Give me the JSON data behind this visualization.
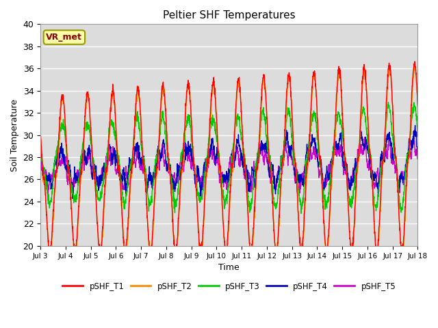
{
  "title": "Peltier SHF Temperatures",
  "xlabel": "Time",
  "ylabel": "Soil Temperature",
  "ylim": [
    20,
    40
  ],
  "xlim_days": [
    3,
    18
  ],
  "annotation_text": "VR_met",
  "colors": {
    "pSHF_T1": "#ff0000",
    "pSHF_T2": "#ff8800",
    "pSHF_T3": "#00cc00",
    "pSHF_T4": "#0000bb",
    "pSHF_T5": "#cc00cc"
  },
  "bg_color": "#dcdcdc",
  "fig_bg": "#ffffff",
  "xtick_labels": [
    "Jul 3",
    "Jul 4",
    "Jul 5",
    "Jul 6",
    "Jul 7",
    "Jul 8",
    "Jul 9",
    "Jul 10",
    "Jul 11",
    "Jul 12",
    "Jul 13",
    "Jul 14",
    "Jul 15",
    "Jul 16",
    "Jul 17",
    "Jul 18"
  ],
  "xtick_positions": [
    3,
    4,
    5,
    6,
    7,
    8,
    9,
    10,
    11,
    12,
    13,
    14,
    15,
    16,
    17,
    18
  ]
}
